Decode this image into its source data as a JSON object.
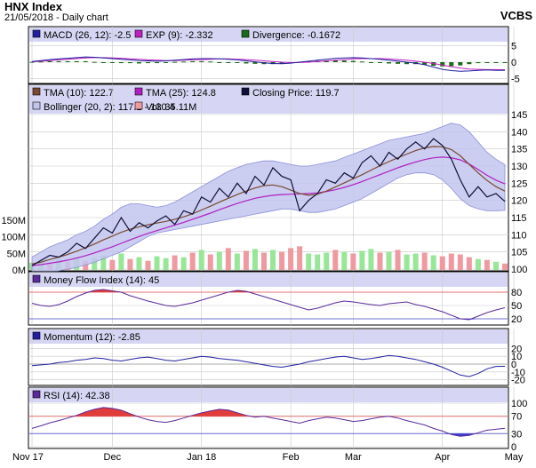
{
  "header": {
    "title": "HNX Index",
    "subtitle": "21/05/2018 - Daily chart",
    "right_label": "VCBS"
  },
  "colors": {
    "panel_bg": "#ffffff",
    "legend_bg": "#d6d6f4",
    "grid": "#c8c8c8",
    "closing": "#10103a",
    "tma10": "#7a4a2e",
    "tma25": "#b020c0",
    "bollinger_fill": "#c2c4ee",
    "bollinger_line": "#8c90d8",
    "vol_up": "#98e698",
    "vol_down": "#ef9aa0",
    "macd_line": "#2020a0",
    "exp_line": "#c020c0",
    "divergence": "#1a6a1a",
    "osc_line": "#5a2a9a",
    "overbought_fill": "#e03c3c",
    "oversold_fill": "#3c3cd0",
    "level_red": "#e07070",
    "level_blue": "#7070d0",
    "axis_text": "#000000"
  },
  "chart_data": [
    {
      "type": "bar",
      "name": "macd-panel",
      "legend": [
        {
          "label": "MACD (26, 12): -2.5",
          "swatch": "#2020a0"
        },
        {
          "label": "EXP (9): -2.332",
          "swatch": "#c020c0"
        },
        {
          "label": "Divergence: -0.1672",
          "swatch": "#1a6a1a"
        }
      ],
      "y_ticks": [
        "5",
        "0",
        "-5"
      ],
      "ylim": [
        -6,
        6
      ],
      "series": [
        {
          "name": "MACD (26, 12)",
          "values": [
            0.2,
            0.5,
            0.8,
            1.0,
            1.2,
            1.4,
            1.6,
            1.5,
            1.3,
            1.1,
            0.9,
            0.7,
            0.5,
            0.4,
            0.3,
            0.4,
            0.6,
            0.8,
            1.0,
            1.1,
            1.1,
            1.0,
            0.9,
            0.7,
            0.4,
            0.1,
            -0.2,
            -0.4,
            -0.5,
            -0.3,
            0.0,
            0.3,
            0.6,
            0.9,
            1.2,
            1.3,
            1.4,
            1.3,
            1.1,
            0.9,
            0.6,
            0.3,
            0.0,
            -0.3,
            -0.8,
            -1.5,
            -2.2,
            -2.6,
            -2.8,
            -2.7,
            -2.5,
            -2.4,
            -2.5,
            -2.5
          ]
        },
        {
          "name": "EXP (9)",
          "values": [
            0.1,
            0.3,
            0.5,
            0.7,
            0.9,
            1.1,
            1.3,
            1.4,
            1.4,
            1.3,
            1.2,
            1.0,
            0.9,
            0.7,
            0.6,
            0.5,
            0.5,
            0.6,
            0.7,
            0.8,
            0.9,
            1.0,
            1.0,
            0.9,
            0.8,
            0.6,
            0.4,
            0.2,
            0.0,
            -0.1,
            -0.1,
            0.0,
            0.2,
            0.4,
            0.6,
            0.8,
            1.0,
            1.1,
            1.1,
            1.1,
            1.0,
            0.8,
            0.6,
            0.3,
            0.0,
            -0.4,
            -0.9,
            -1.4,
            -1.8,
            -2.1,
            -2.2,
            -2.3,
            -2.3,
            -2.33
          ]
        },
        {
          "name": "Divergence",
          "values": [
            0.1,
            0.2,
            0.3,
            0.3,
            0.3,
            0.3,
            0.3,
            0.1,
            -0.1,
            -0.2,
            -0.3,
            -0.3,
            -0.4,
            -0.3,
            -0.3,
            -0.1,
            0.1,
            0.2,
            0.3,
            0.3,
            0.2,
            0.0,
            -0.1,
            -0.2,
            -0.4,
            -0.5,
            -0.6,
            -0.6,
            -0.5,
            -0.2,
            0.1,
            0.3,
            0.4,
            0.5,
            0.6,
            0.5,
            0.4,
            0.2,
            0.0,
            -0.2,
            -0.4,
            -0.5,
            -0.6,
            -0.6,
            -0.8,
            -1.1,
            -1.3,
            -1.2,
            -1.0,
            -0.6,
            -0.3,
            -0.1,
            -0.2,
            -0.17
          ]
        }
      ]
    },
    {
      "type": "line",
      "name": "price-panel",
      "legend": [
        {
          "label": "TMA (10): 122.7",
          "swatch": "#7a4a2e"
        },
        {
          "label": "TMA (25): 124.8",
          "swatch": "#b020c0"
        },
        {
          "label": "Closing Price: 119.7",
          "swatch": "#10103a"
        },
        {
          "label": "Bollinger (20, 2): 117.1 - 130.4",
          "swatch": "#c2c4ee"
        },
        {
          "label": "Vol: 35.11M",
          "swatch": "#ef9aa0"
        }
      ],
      "y_ticks": [
        "145",
        "140",
        "135",
        "130",
        "125",
        "120",
        "115",
        "110",
        "105",
        "100"
      ],
      "ylim": [
        100,
        145
      ],
      "vol_ticks": [
        "150M",
        "100M",
        "50M",
        "0M"
      ],
      "vol_lim": [
        0,
        150
      ],
      "series": [
        {
          "name": "Closing Price",
          "values": [
            101.0,
            102.5,
            104.0,
            103.5,
            105.0,
            107.5,
            106.0,
            109.0,
            112.0,
            110.5,
            115.0,
            111.0,
            113.5,
            112.0,
            114.0,
            115.5,
            113.0,
            117.0,
            116.0,
            121.0,
            119.5,
            123.5,
            121.0,
            125.0,
            122.0,
            127.0,
            124.5,
            129.5,
            127.0,
            126.0,
            117.0,
            120.0,
            122.0,
            126.0,
            125.0,
            128.0,
            126.5,
            131.0,
            133.0,
            130.0,
            134.0,
            132.0,
            135.0,
            137.0,
            135.0,
            138.0,
            136.0,
            132.0,
            126.0,
            121.0,
            124.0,
            121.0,
            122.0,
            119.7
          ]
        },
        {
          "name": "TMA (10)",
          "values": [
            101.5,
            102.0,
            102.8,
            103.5,
            104.3,
            105.2,
            106.2,
            107.3,
            108.5,
            109.6,
            110.7,
            111.6,
            112.3,
            112.9,
            113.4,
            113.9,
            114.5,
            115.2,
            116.1,
            117.2,
            118.3,
            119.5,
            120.6,
            121.7,
            122.7,
            123.6,
            124.3,
            124.5,
            124.0,
            123.0,
            122.0,
            121.5,
            121.8,
            122.7,
            123.9,
            125.1,
            126.3,
            127.5,
            128.8,
            130.1,
            131.3,
            132.4,
            133.5,
            134.5,
            135.3,
            135.7,
            135.6,
            134.8,
            133.0,
            130.5,
            128.0,
            125.8,
            124.0,
            122.7
          ]
        },
        {
          "name": "TMA (25)",
          "values": [
            101.0,
            101.3,
            101.7,
            102.1,
            102.6,
            103.2,
            103.9,
            104.7,
            105.6,
            106.5,
            107.5,
            108.5,
            109.5,
            110.4,
            111.2,
            112.0,
            112.8,
            113.6,
            114.5,
            115.4,
            116.3,
            117.3,
            118.2,
            119.1,
            119.9,
            120.6,
            121.1,
            121.5,
            121.7,
            121.8,
            121.9,
            122.0,
            122.2,
            122.6,
            123.1,
            123.8,
            124.6,
            125.5,
            126.5,
            127.5,
            128.5,
            129.5,
            130.4,
            131.2,
            131.9,
            132.4,
            132.6,
            132.4,
            131.8,
            130.6,
            129.0,
            127.3,
            125.9,
            124.8
          ]
        },
        {
          "name": "Bollinger upper",
          "values": [
            103.5,
            105.0,
            106.5,
            107.5,
            108.5,
            110.0,
            111.0,
            112.5,
            114.5,
            116.0,
            118.0,
            119.0,
            119.0,
            118.5,
            118.0,
            118.5,
            119.5,
            121.0,
            122.5,
            124.0,
            125.5,
            127.0,
            128.5,
            129.5,
            130.5,
            131.0,
            131.5,
            131.5,
            131.0,
            130.5,
            130.0,
            130.0,
            130.5,
            131.0,
            131.5,
            132.5,
            133.5,
            134.5,
            135.5,
            136.5,
            137.5,
            138.0,
            138.5,
            139.0,
            139.5,
            140.5,
            141.5,
            142.5,
            142.0,
            140.0,
            137.0,
            134.0,
            132.0,
            130.4
          ]
        },
        {
          "name": "Bollinger lower",
          "values": [
            99.0,
            99.0,
            99.2,
            99.5,
            100.0,
            100.5,
            101.2,
            102.0,
            103.0,
            104.0,
            105.0,
            106.5,
            108.0,
            109.5,
            110.5,
            111.0,
            111.5,
            112.0,
            112.5,
            113.0,
            113.5,
            114.0,
            114.5,
            115.0,
            115.5,
            116.0,
            116.5,
            117.0,
            117.5,
            117.5,
            117.0,
            116.5,
            116.5,
            117.0,
            117.5,
            118.5,
            119.5,
            120.5,
            122.0,
            123.5,
            125.0,
            126.5,
            127.5,
            128.0,
            128.0,
            127.5,
            126.0,
            123.5,
            120.5,
            118.5,
            117.5,
            117.0,
            117.0,
            117.1
          ]
        }
      ],
      "volume": [
        40,
        55,
        35,
        60,
        45,
        70,
        50,
        65,
        80,
        55,
        90,
        60,
        70,
        50,
        75,
        65,
        80,
        70,
        95,
        110,
        85,
        100,
        120,
        90,
        105,
        115,
        95,
        110,
        100,
        120,
        130,
        90,
        85,
        95,
        110,
        100,
        90,
        105,
        115,
        95,
        100,
        110,
        85,
        90,
        95,
        80,
        75,
        90,
        85,
        70,
        60,
        55,
        45,
        35.11
      ],
      "volume_up": [
        true,
        true,
        false,
        true,
        false,
        true,
        false,
        true,
        true,
        false,
        true,
        false,
        true,
        false,
        true,
        true,
        false,
        true,
        false,
        true,
        false,
        true,
        false,
        true,
        false,
        true,
        false,
        true,
        false,
        false,
        false,
        true,
        true,
        true,
        false,
        true,
        false,
        true,
        true,
        false,
        true,
        false,
        true,
        true,
        false,
        true,
        false,
        false,
        false,
        false,
        true,
        false,
        true,
        false
      ]
    },
    {
      "type": "line",
      "name": "mfi-panel",
      "legend": [
        {
          "label": "Money Flow Index (14): 45",
          "swatch": "#5a2a9a"
        }
      ],
      "y_ticks": [
        "80",
        "50",
        "20"
      ],
      "ylim": [
        10,
        90
      ],
      "overbought": 80,
      "oversold": 20,
      "values": [
        55,
        50,
        48,
        52,
        60,
        70,
        78,
        84,
        86,
        83,
        80,
        72,
        66,
        60,
        55,
        50,
        48,
        52,
        56,
        62,
        68,
        74,
        80,
        84,
        82,
        76,
        70,
        64,
        58,
        52,
        46,
        40,
        44,
        50,
        56,
        60,
        58,
        55,
        52,
        50,
        54,
        56,
        58,
        52,
        48,
        42,
        36,
        28,
        20,
        18,
        26,
        34,
        40,
        45
      ]
    },
    {
      "type": "line",
      "name": "momentum-panel",
      "legend": [
        {
          "label": "Momentum (12): -2.85",
          "swatch": "#2020a0"
        }
      ],
      "y_ticks": [
        "20",
        "10",
        "0",
        "-10",
        "-20"
      ],
      "ylim": [
        -25,
        25
      ],
      "values": [
        -2,
        -1,
        0,
        2,
        3,
        5,
        6,
        8,
        7,
        5,
        4,
        6,
        8,
        9,
        7,
        5,
        4,
        6,
        8,
        10,
        9,
        7,
        6,
        5,
        3,
        1,
        -1,
        -3,
        -4,
        -2,
        0,
        3,
        5,
        7,
        9,
        10,
        8,
        6,
        7,
        9,
        11,
        10,
        8,
        6,
        3,
        0,
        -4,
        -9,
        -14,
        -16,
        -12,
        -6,
        -3,
        -2.85
      ]
    },
    {
      "type": "line",
      "name": "rsi-panel",
      "legend": [
        {
          "label": "RSI (14): 42.38",
          "swatch": "#5a2a9a"
        }
      ],
      "y_ticks": [
        "100",
        "70",
        "30",
        "0"
      ],
      "ylim": [
        0,
        100
      ],
      "overbought": 70,
      "oversold": 30,
      "values": [
        42,
        48,
        55,
        60,
        66,
        72,
        80,
        86,
        90,
        88,
        84,
        76,
        68,
        62,
        58,
        56,
        60,
        66,
        72,
        78,
        82,
        86,
        84,
        78,
        72,
        68,
        70,
        66,
        62,
        58,
        54,
        60,
        64,
        68,
        66,
        62,
        58,
        60,
        64,
        68,
        70,
        66,
        60,
        55,
        50,
        42,
        36,
        28,
        24,
        26,
        32,
        38,
        40,
        42.38
      ]
    }
  ],
  "x_axis": {
    "labels": [
      {
        "label": "Nov 17",
        "index": 0
      },
      {
        "label": "Dec",
        "index": 9
      },
      {
        "label": "Jan 18",
        "index": 19
      },
      {
        "label": "Feb",
        "index": 29
      },
      {
        "label": "Mar",
        "index": 36
      },
      {
        "label": "Apr",
        "index": 46
      },
      {
        "label": "May",
        "index": 54
      }
    ]
  }
}
